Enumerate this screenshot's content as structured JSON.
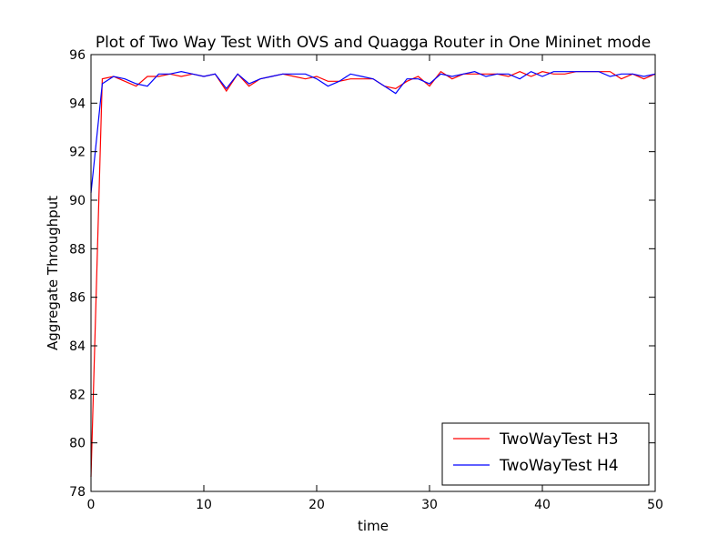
{
  "chart_data": {
    "type": "line",
    "title": "Plot of Two Way Test With OVS and Quagga Router in One Mininet mode",
    "xlabel": "time",
    "ylabel": "Aggregate Throughput",
    "xlim": [
      0,
      50
    ],
    "ylim": [
      78,
      96
    ],
    "xticks": [
      "0",
      "10",
      "20",
      "30",
      "40",
      "50"
    ],
    "yticks": [
      "78",
      "80",
      "82",
      "84",
      "86",
      "88",
      "90",
      "92",
      "94",
      "96"
    ],
    "grid": false,
    "legend_position": "lower-right",
    "x": [
      0,
      1,
      2,
      3,
      4,
      5,
      6,
      7,
      8,
      9,
      10,
      11,
      12,
      13,
      14,
      15,
      16,
      17,
      18,
      19,
      20,
      21,
      22,
      23,
      24,
      25,
      26,
      27,
      28,
      29,
      30,
      31,
      32,
      33,
      34,
      35,
      36,
      37,
      38,
      39,
      40,
      41,
      42,
      43,
      44,
      45,
      46,
      47,
      48,
      49,
      50
    ],
    "series": [
      {
        "name": "TwoWayTest H3",
        "color": "#ff0000",
        "values": [
          78.6,
          95.0,
          95.1,
          94.9,
          94.7,
          95.1,
          95.1,
          95.2,
          95.1,
          95.2,
          95.1,
          95.2,
          94.5,
          95.2,
          94.7,
          95.0,
          95.1,
          95.2,
          95.1,
          95.0,
          95.1,
          94.9,
          94.9,
          95.0,
          95.0,
          95.0,
          94.7,
          94.6,
          94.9,
          95.1,
          94.7,
          95.3,
          95.0,
          95.2,
          95.2,
          95.2,
          95.2,
          95.1,
          95.3,
          95.1,
          95.3,
          95.2,
          95.2,
          95.3,
          95.3,
          95.3,
          95.3,
          95.0,
          95.2,
          95.0,
          95.2
        ]
      },
      {
        "name": "TwoWayTest H4",
        "color": "#0000ff",
        "values": [
          90.3,
          94.8,
          95.1,
          95.0,
          94.8,
          94.7,
          95.2,
          95.2,
          95.3,
          95.2,
          95.1,
          95.2,
          94.6,
          95.2,
          94.8,
          95.0,
          95.1,
          95.2,
          95.2,
          95.2,
          95.0,
          94.7,
          94.9,
          95.2,
          95.1,
          95.0,
          94.7,
          94.4,
          95.0,
          95.0,
          94.8,
          95.2,
          95.1,
          95.2,
          95.3,
          95.1,
          95.2,
          95.2,
          95.0,
          95.3,
          95.1,
          95.3,
          95.3,
          95.3,
          95.3,
          95.3,
          95.1,
          95.2,
          95.2,
          95.1,
          95.2
        ]
      }
    ]
  }
}
